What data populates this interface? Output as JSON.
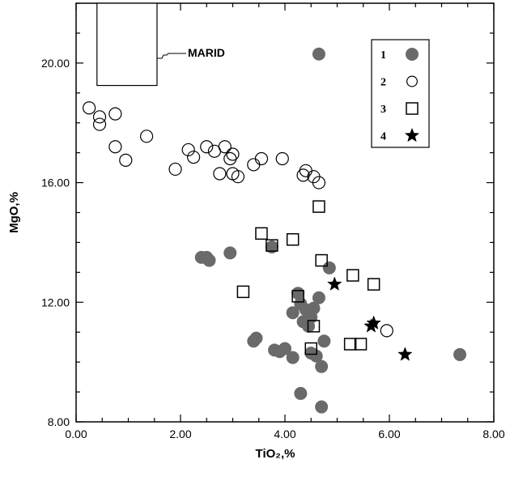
{
  "chart_data": {
    "type": "scatter",
    "xlabel": "TiO₂,%",
    "ylabel": "MgO,%",
    "xlim": [
      0,
      8
    ],
    "ylim": [
      8,
      22
    ],
    "x_ticks": [
      "0.00",
      "2.00",
      "4.00",
      "6.00",
      "8.00"
    ],
    "y_ticks": [
      "8.00",
      "12.00",
      "16.00",
      "20.00"
    ],
    "legend_position": "top-right",
    "grid": false,
    "annotation": {
      "text": "MARID",
      "box": {
        "x0": 0.4,
        "x1": 1.55,
        "y0": 19.25,
        "y1": 22.0
      }
    },
    "series": [
      {
        "name": "1",
        "marker": "filled-circle",
        "color": "#6a6a6a",
        "points": [
          [
            4.65,
            20.3
          ],
          [
            2.4,
            13.5
          ],
          [
            2.5,
            13.5
          ],
          [
            2.55,
            13.4
          ],
          [
            2.95,
            13.65
          ],
          [
            4.85,
            13.15
          ],
          [
            3.75,
            13.85
          ],
          [
            4.25,
            12.3
          ],
          [
            4.65,
            12.15
          ],
          [
            4.15,
            11.65
          ],
          [
            4.3,
            11.95
          ],
          [
            4.4,
            11.75
          ],
          [
            4.55,
            11.8
          ],
          [
            4.35,
            11.35
          ],
          [
            4.45,
            11.2
          ],
          [
            4.5,
            11.5
          ],
          [
            3.4,
            10.7
          ],
          [
            3.45,
            10.8
          ],
          [
            3.8,
            10.4
          ],
          [
            3.9,
            10.35
          ],
          [
            4.0,
            10.45
          ],
          [
            4.15,
            10.15
          ],
          [
            4.5,
            10.3
          ],
          [
            4.6,
            10.2
          ],
          [
            4.7,
            9.85
          ],
          [
            4.75,
            10.7
          ],
          [
            4.3,
            8.95
          ],
          [
            4.7,
            8.5
          ],
          [
            7.35,
            10.25
          ]
        ]
      },
      {
        "name": "2",
        "marker": "open-circle",
        "color": "#000000",
        "points": [
          [
            0.25,
            18.5
          ],
          [
            0.45,
            18.2
          ],
          [
            0.45,
            17.95
          ],
          [
            0.75,
            18.3
          ],
          [
            0.75,
            17.2
          ],
          [
            0.95,
            16.75
          ],
          [
            1.35,
            17.55
          ],
          [
            1.9,
            16.45
          ],
          [
            2.15,
            17.1
          ],
          [
            2.25,
            16.85
          ],
          [
            2.5,
            17.2
          ],
          [
            2.65,
            17.05
          ],
          [
            2.75,
            16.3
          ],
          [
            2.85,
            17.2
          ],
          [
            2.95,
            16.8
          ],
          [
            3.0,
            16.3
          ],
          [
            3.0,
            16.95
          ],
          [
            3.1,
            16.2
          ],
          [
            3.4,
            16.6
          ],
          [
            3.55,
            16.8
          ],
          [
            3.95,
            16.8
          ],
          [
            4.35,
            16.25
          ],
          [
            4.4,
            16.4
          ],
          [
            4.55,
            16.2
          ],
          [
            4.65,
            16.0
          ],
          [
            5.95,
            11.05
          ]
        ]
      },
      {
        "name": "3",
        "marker": "open-square",
        "color": "#000000",
        "points": [
          [
            4.65,
            15.2
          ],
          [
            3.55,
            14.3
          ],
          [
            3.75,
            13.9
          ],
          [
            4.15,
            14.1
          ],
          [
            4.7,
            13.4
          ],
          [
            3.2,
            12.35
          ],
          [
            4.25,
            12.2
          ],
          [
            5.3,
            12.9
          ],
          [
            5.7,
            12.6
          ],
          [
            4.55,
            11.2
          ],
          [
            4.5,
            10.45
          ],
          [
            5.25,
            10.6
          ],
          [
            5.45,
            10.6
          ]
        ]
      },
      {
        "name": "4",
        "marker": "star",
        "color": "#000000",
        "points": [
          [
            4.95,
            12.6
          ],
          [
            5.65,
            11.2
          ],
          [
            5.7,
            11.3
          ],
          [
            6.3,
            10.25
          ]
        ]
      }
    ]
  }
}
